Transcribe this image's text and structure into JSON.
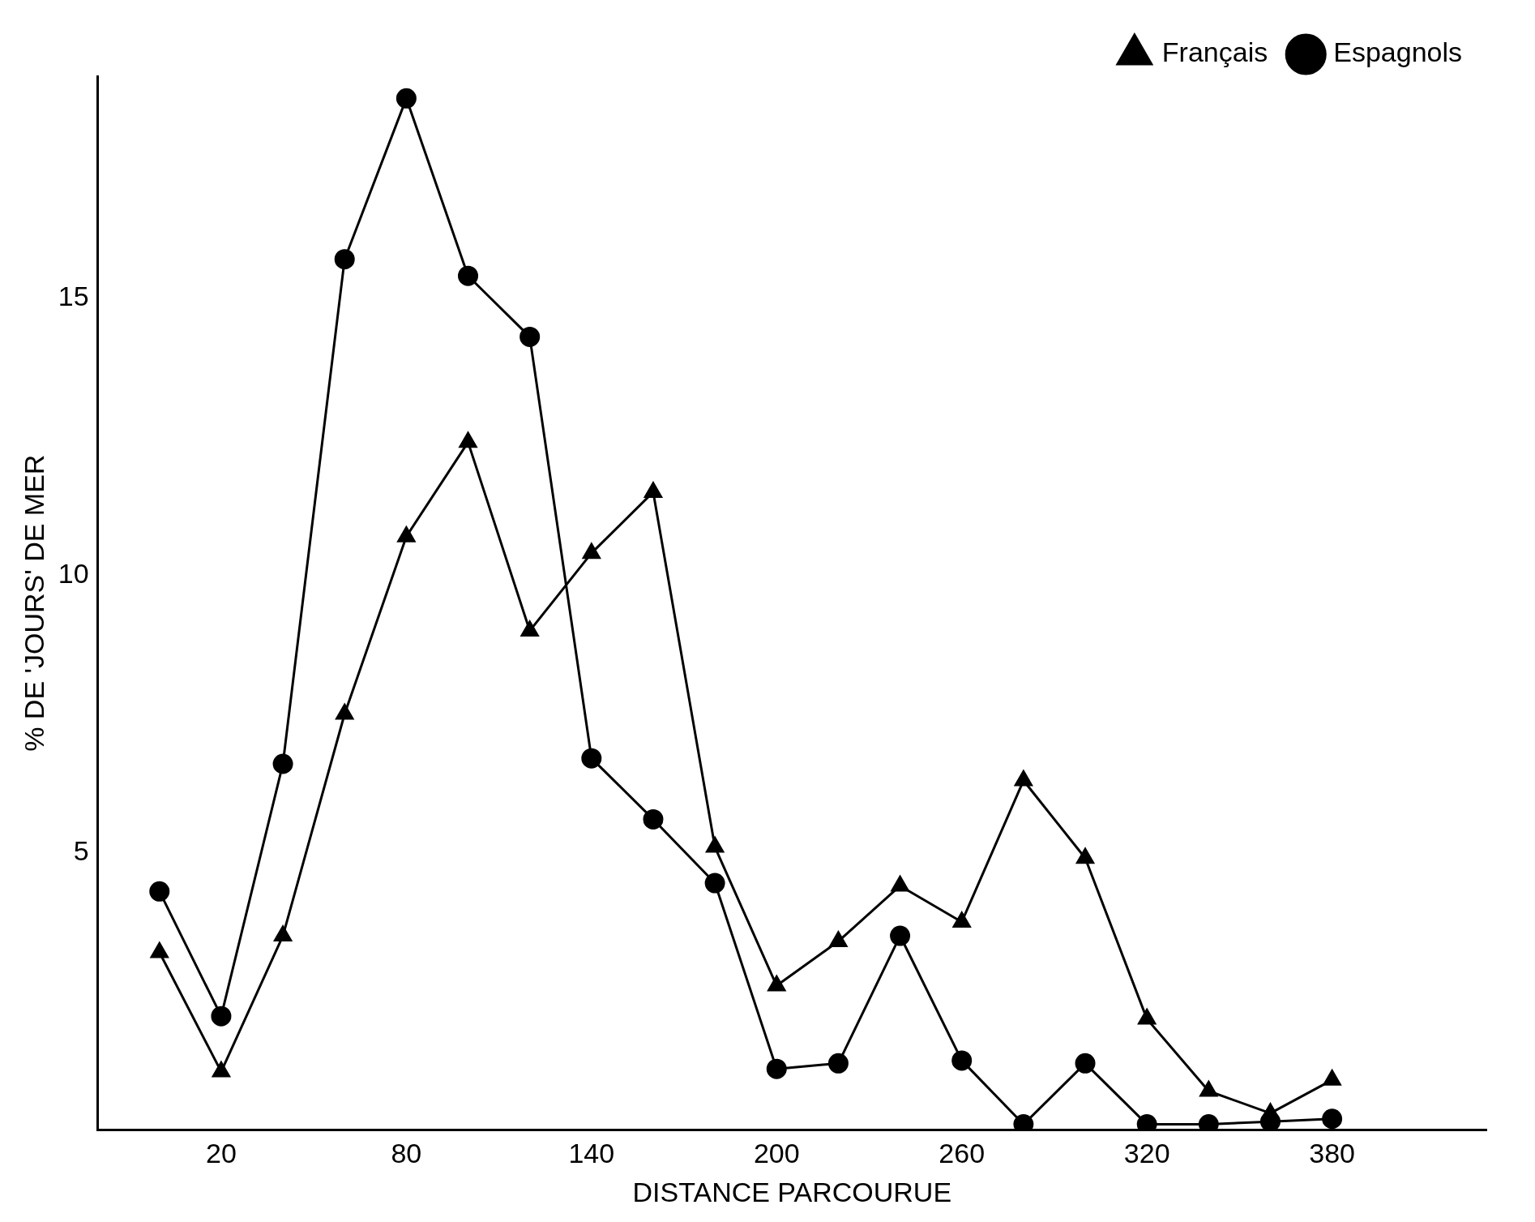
{
  "chart_data": {
    "type": "line",
    "xlabel": "DISTANCE PARCOURUE",
    "ylabel": "% DE 'JOURS' DE MER",
    "x": [
      0,
      20,
      40,
      60,
      80,
      100,
      120,
      140,
      160,
      180,
      200,
      220,
      240,
      260,
      280,
      300,
      320,
      340,
      360,
      380
    ],
    "series": [
      {
        "name": "Français",
        "color": "#000000",
        "marker": "triangle",
        "values": [
          3.2,
          1.05,
          3.5,
          7.5,
          10.7,
          12.4,
          9.0,
          10.4,
          11.5,
          5.1,
          2.6,
          3.4,
          4.4,
          3.75,
          6.3,
          4.9,
          2.0,
          0.7,
          0.3,
          0.9
        ]
      },
      {
        "name": "Espagnols",
        "color": "#000000",
        "marker": "circle",
        "values": [
          4.3,
          2.05,
          6.6,
          15.7,
          18.6,
          15.4,
          14.3,
          6.7,
          5.6,
          4.45,
          1.1,
          1.2,
          3.5,
          1.25,
          0.1,
          1.2,
          0.1,
          0.1,
          0.15,
          0.2
        ]
      }
    ],
    "xlim": [
      -20,
      430
    ],
    "xticks": [
      20,
      80,
      140,
      200,
      260,
      320,
      380
    ],
    "ylim": [
      0,
      19
    ],
    "yticks": [
      5,
      10,
      15
    ],
    "grid": false,
    "legend": "top right",
    "line_style": "solid"
  }
}
